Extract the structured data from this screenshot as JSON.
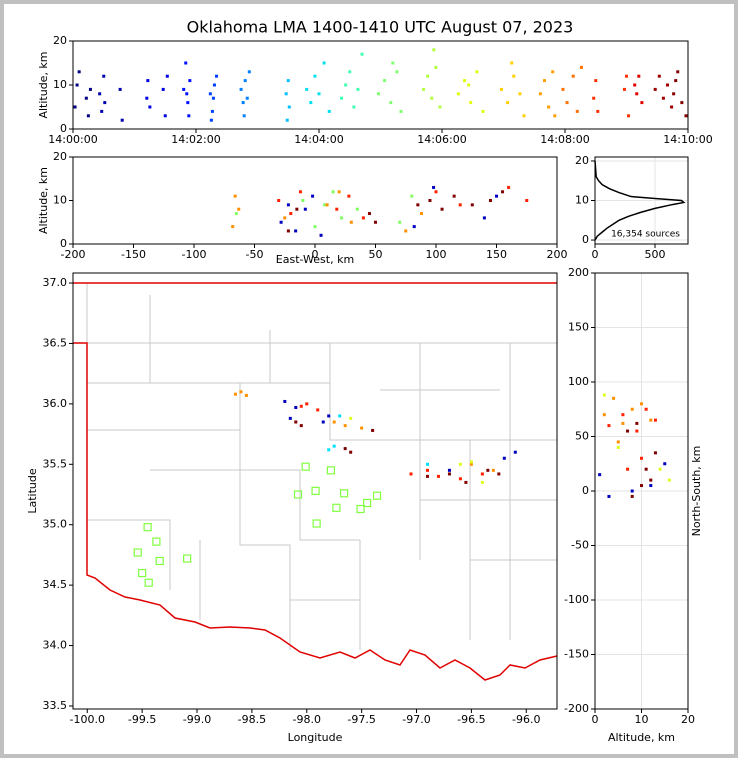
{
  "chart_data": [
    {
      "type": "scatter",
      "title": "Oklahoma LMA 1400-1410 UTC August 07, 2023",
      "ylabel": "Altitude, km",
      "xlim": [
        0,
        600
      ],
      "ylim": [
        0,
        20
      ],
      "xticks": [
        {
          "value": 0,
          "label": "14:00:00"
        },
        {
          "value": 120,
          "label": "14:02:00"
        },
        {
          "value": 240,
          "label": "14:04:00"
        },
        {
          "value": 360,
          "label": "14:06:00"
        },
        {
          "value": 480,
          "label": "14:08:00"
        },
        {
          "value": 600,
          "label": "14:10:00"
        }
      ],
      "yticks": [
        0,
        10,
        20
      ],
      "grid": false,
      "series": [
        {
          "color": "#000080",
          "x": [
            2,
            4,
            6,
            13,
            15,
            17
          ],
          "values": [
            5,
            10,
            13,
            7,
            3,
            9
          ]
        },
        {
          "color": "#0000b0",
          "x": [
            26,
            28,
            30,
            31,
            46,
            48
          ],
          "values": [
            8,
            4,
            12,
            6,
            9,
            2
          ]
        },
        {
          "color": "#0000e0",
          "x": [
            72,
            73,
            75,
            88,
            90,
            92
          ],
          "values": [
            7,
            11,
            5,
            9,
            3,
            12
          ]
        },
        {
          "color": "#0010ff",
          "x": [
            108,
            110,
            112,
            114,
            113,
            111
          ],
          "values": [
            9,
            15,
            6,
            11,
            3,
            8
          ]
        },
        {
          "color": "#0040ff",
          "x": [
            134,
            136,
            138,
            140,
            137,
            135
          ],
          "values": [
            8,
            4,
            10,
            12,
            7,
            2
          ]
        },
        {
          "color": "#0080ff",
          "x": [
            164,
            166,
            168,
            170,
            172,
            167
          ],
          "values": [
            9,
            6,
            11,
            7,
            13,
            3
          ]
        },
        {
          "color": "#00c0ff",
          "x": [
            208,
            210,
            211,
            209
          ],
          "values": [
            8,
            11,
            5,
            2
          ]
        },
        {
          "color": "#00e0f0",
          "x": [
            228,
            232,
            236,
            240,
            245,
            250
          ],
          "values": [
            9,
            6,
            12,
            8,
            15,
            4
          ]
        },
        {
          "color": "#40ffb0",
          "x": [
            262,
            266,
            270,
            274,
            278,
            282
          ],
          "values": [
            7,
            10,
            13,
            5,
            9,
            17
          ]
        },
        {
          "color": "#80ff70",
          "x": [
            298,
            304,
            310,
            316,
            320,
            312
          ],
          "values": [
            8,
            11,
            6,
            13,
            4,
            15
          ]
        },
        {
          "color": "#b0ff40",
          "x": [
            342,
            346,
            350,
            354,
            358,
            352
          ],
          "values": [
            9,
            12,
            7,
            14,
            5,
            18
          ]
        },
        {
          "color": "#e0ff10",
          "x": [
            376,
            382,
            388,
            394,
            400,
            386
          ],
          "values": [
            8,
            11,
            6,
            13,
            4,
            10
          ]
        },
        {
          "color": "#ffd000",
          "x": [
            418,
            424,
            430,
            436,
            440,
            428
          ],
          "values": [
            9,
            6,
            12,
            8,
            3,
            15
          ]
        },
        {
          "color": "#ffa000",
          "x": [
            456,
            460,
            464,
            468,
            470
          ],
          "values": [
            8,
            11,
            5,
            13,
            3
          ]
        },
        {
          "color": "#ff7000",
          "x": [
            478,
            482,
            488,
            492,
            496
          ],
          "values": [
            9,
            6,
            12,
            4,
            14
          ]
        },
        {
          "color": "#ff3000",
          "x": [
            508,
            510,
            512,
            538,
            540,
            542
          ],
          "values": [
            7,
            11,
            4,
            9,
            12,
            3
          ]
        },
        {
          "color": "#e00000",
          "x": [
            548,
            550,
            552,
            555
          ],
          "values": [
            10,
            8,
            12,
            6
          ]
        },
        {
          "color": "#a00000",
          "x": [
            568,
            572,
            576,
            580,
            584
          ],
          "values": [
            9,
            12,
            7,
            10,
            5
          ]
        },
        {
          "color": "#800000",
          "x": [
            586,
            588,
            590,
            594,
            598
          ],
          "values": [
            8,
            11,
            13,
            6,
            3
          ]
        }
      ]
    },
    {
      "type": "scatter",
      "xlabel": "East-West, km",
      "ylabel": "Altitude, km",
      "xlim": [
        -200,
        200
      ],
      "ylim": [
        0,
        20
      ],
      "xticks": [
        -200,
        -150,
        -100,
        -50,
        0,
        50,
        100,
        150,
        200
      ],
      "yticks": [
        0,
        10,
        20
      ],
      "grid": false,
      "series": [
        {
          "color": "#0000c0",
          "x": [
            -28,
            -22,
            -16,
            -8,
            -2,
            5,
            82,
            98,
            140,
            150
          ],
          "values": [
            5,
            9,
            3,
            8,
            11,
            2,
            4,
            13,
            6,
            11
          ]
        },
        {
          "color": "#80ff60",
          "x": [
            -65,
            -10,
            0,
            8,
            15,
            22,
            35,
            70,
            80
          ],
          "values": [
            7,
            10,
            4,
            9,
            12,
            6,
            8,
            5,
            11
          ]
        },
        {
          "color": "#ff9000",
          "x": [
            -68,
            -63,
            -66,
            -25,
            10,
            20,
            30,
            75,
            88
          ],
          "values": [
            4,
            8,
            11,
            6,
            9,
            12,
            5,
            3,
            7
          ]
        },
        {
          "color": "#ff2000",
          "x": [
            -30,
            -20,
            -12,
            18,
            28,
            40,
            100,
            120,
            160,
            175
          ],
          "values": [
            10,
            7,
            12,
            8,
            11,
            6,
            12,
            9,
            13,
            10
          ]
        },
        {
          "color": "#800000",
          "x": [
            -22,
            -15,
            45,
            50,
            85,
            95,
            105,
            115,
            130,
            145,
            155
          ],
          "values": [
            3,
            8,
            7,
            5,
            9,
            10,
            8,
            11,
            9,
            10,
            12
          ]
        }
      ]
    },
    {
      "type": "line",
      "annotation": "16,354 sources",
      "xlim": [
        0,
        775
      ],
      "ylim": [
        -1,
        21
      ],
      "xticks": [
        0,
        500
      ],
      "yticks": [
        0,
        10,
        20
      ],
      "grid": true,
      "series": [
        {
          "color": "#000000",
          "x": [
            0,
            20,
            60,
            100,
            150,
            200,
            280,
            380,
            500,
            650,
            740,
            720,
            500,
            300,
            200,
            120,
            60,
            30,
            10,
            5,
            0
          ],
          "values": [
            0,
            1,
            2,
            3,
            4,
            5,
            6,
            7,
            8,
            9,
            9.5,
            10,
            10.5,
            11,
            12,
            13,
            14,
            15,
            16,
            18,
            20
          ]
        }
      ]
    },
    {
      "type": "scatter",
      "xlabel": "Longitude",
      "ylabel": "Latitude",
      "xlim": [
        -100.13,
        -95.72
      ],
      "ylim": [
        33.475,
        37.083
      ],
      "xticks": [
        {
          "value": -100,
          "label": "-100.0"
        },
        -99.5,
        {
          "value": -99,
          "label": "-99.0"
        },
        -98.5,
        {
          "value": -98,
          "label": "-98.0"
        },
        -97.5,
        {
          "value": -97,
          "label": "-97.0"
        },
        -96.5,
        {
          "value": -96,
          "label": "-96.0"
        }
      ],
      "yticks": [
        33.5,
        {
          "value": 34,
          "label": "34.0"
        },
        34.5,
        {
          "value": 35,
          "label": "35.0"
        },
        35.5,
        {
          "value": 36,
          "label": "36.0"
        },
        36.5,
        {
          "value": 37,
          "label": "37.0"
        }
      ],
      "grid": false,
      "series": [
        {
          "color": "#ff9000",
          "x": [
            -98.65,
            -98.6,
            -98.55,
            -97.75,
            -97.65,
            -97.5,
            -96.5,
            -96.3
          ],
          "values": [
            36.08,
            36.1,
            36.07,
            35.85,
            35.82,
            35.8,
            35.5,
            35.45
          ]
        },
        {
          "color": "#0000c0",
          "x": [
            -98.2,
            -98.1,
            -98.15,
            -97.85,
            -97.8,
            -96.7,
            -96.2,
            -96.1
          ],
          "values": [
            36.02,
            35.97,
            35.88,
            35.85,
            35.9,
            35.45,
            35.55,
            35.6
          ]
        },
        {
          "color": "#00e0ff",
          "x": [
            -97.75,
            -97.8,
            -97.7,
            -96.9
          ],
          "values": [
            35.65,
            35.62,
            35.9,
            35.5
          ]
        },
        {
          "color": "#e0ff20",
          "x": [
            -96.6,
            -96.5,
            -96.4,
            -97.6
          ],
          "values": [
            35.5,
            35.52,
            35.35,
            35.88
          ]
        },
        {
          "color": "#ff2000",
          "x": [
            -98.05,
            -98.0,
            -97.9,
            -97.05,
            -96.9,
            -96.8,
            -96.6,
            -96.4
          ],
          "values": [
            35.98,
            36.0,
            35.95,
            35.42,
            35.45,
            35.4,
            35.38,
            35.42
          ]
        },
        {
          "color": "#800000",
          "x": [
            -98.1,
            -98.05,
            -97.65,
            -97.6,
            -97.4,
            -96.9,
            -96.7,
            -96.55,
            -96.35,
            -96.25
          ],
          "values": [
            35.85,
            35.82,
            35.63,
            35.6,
            35.78,
            35.4,
            35.42,
            35.35,
            35.45,
            35.42
          ]
        },
        {
          "color": "#80ff40",
          "marker": "square",
          "x": [
            -99.45,
            -99.37,
            -99.34,
            -99.54,
            -99.5,
            -99.44,
            -99.09,
            -98.01,
            -97.92,
            -97.78,
            -98.08,
            -97.91,
            -97.73,
            -97.66,
            -97.51,
            -97.45,
            -97.36
          ],
          "values": [
            34.98,
            34.86,
            34.7,
            34.77,
            34.6,
            34.52,
            34.72,
            35.48,
            35.28,
            35.45,
            35.25,
            35.01,
            35.14,
            35.26,
            35.13,
            35.18,
            35.24
          ]
        }
      ]
    },
    {
      "type": "scatter",
      "xlabel": "Altitude, km",
      "ylabel": "North-South, km",
      "xlim": [
        0,
        20
      ],
      "ylim": [
        -200,
        200
      ],
      "xticks": [
        0,
        10,
        20
      ],
      "yticks": [
        -200,
        -150,
        -100,
        -50,
        0,
        50,
        100,
        150,
        200
      ],
      "grid": true,
      "series": [
        {
          "color": "#ff9000",
          "x": [
            2,
            4,
            6,
            8,
            10,
            12,
            5
          ],
          "values": [
            70,
            85,
            62,
            75,
            80,
            65,
            45
          ]
        },
        {
          "color": "#ff2000",
          "x": [
            3,
            6,
            9,
            11,
            13,
            7,
            10
          ],
          "values": [
            60,
            70,
            55,
            75,
            65,
            20,
            30
          ]
        },
        {
          "color": "#e0ff20",
          "x": [
            2,
            5,
            14,
            16
          ],
          "values": [
            88,
            40,
            20,
            10
          ]
        },
        {
          "color": "#0000c0",
          "x": [
            1,
            3,
            8,
            12,
            15
          ],
          "values": [
            15,
            -5,
            0,
            5,
            25
          ]
        },
        {
          "color": "#800000",
          "x": [
            7,
            9,
            11,
            12,
            8,
            10,
            13
          ],
          "values": [
            55,
            62,
            20,
            10,
            -5,
            5,
            35
          ]
        }
      ]
    }
  ]
}
